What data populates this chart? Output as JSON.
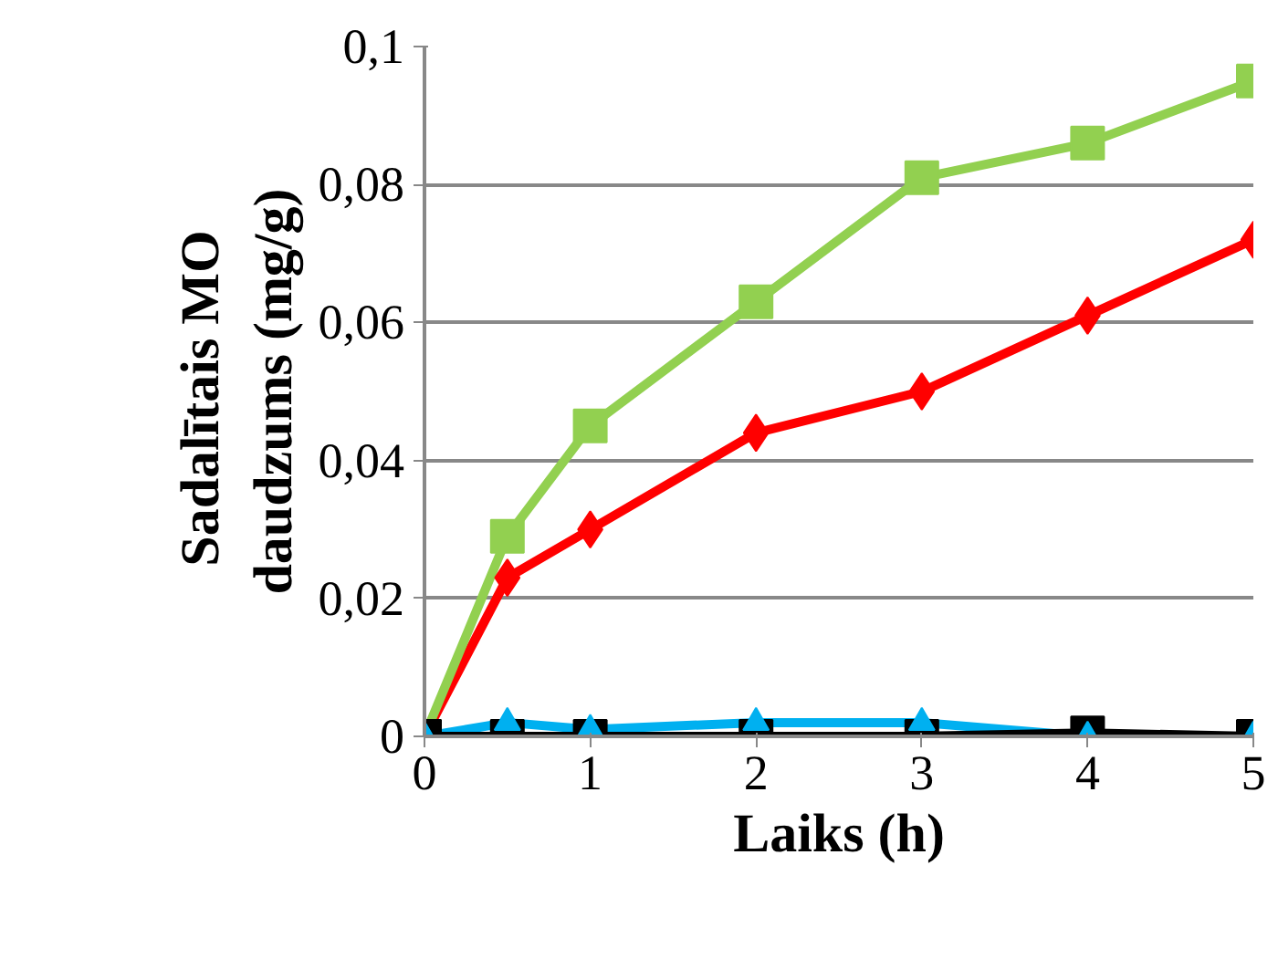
{
  "chart_data": {
    "type": "line",
    "xlabel": "Laiks (h)",
    "ylabel": "Sadalītais  MO\ndaudzums (mg/g)",
    "x": [
      0,
      0.5,
      1,
      2,
      3,
      4,
      5
    ],
    "xlim": [
      0,
      5
    ],
    "xticks": [
      0,
      1,
      2,
      3,
      4,
      5
    ],
    "ylim": [
      0,
      0.1
    ],
    "yticks": [
      {
        "value": 0,
        "label": "0"
      },
      {
        "value": 0.02,
        "label": "0,02"
      },
      {
        "value": 0.04,
        "label": "0,04"
      },
      {
        "value": 0.06,
        "label": "0,06"
      },
      {
        "value": 0.08,
        "label": "0,08"
      },
      {
        "value": 0.1,
        "label": "0,1"
      }
    ],
    "grid": "y",
    "series": [
      {
        "color": "#00b0f0",
        "marker": "triangle",
        "values": [
          0,
          0.002,
          0.001,
          0.002,
          0.002,
          0,
          0
        ]
      },
      {
        "color": "#ff0000",
        "marker": "diamond",
        "values": [
          0,
          0.023,
          0.03,
          0.044,
          0.05,
          0.061,
          0.072
        ]
      },
      {
        "color": "#92d050",
        "marker": "square",
        "values": [
          0,
          0.029,
          0.045,
          0.063,
          0.081,
          0.086,
          0.095
        ]
      },
      {
        "color": "#000000",
        "marker": "square",
        "values": [
          0,
          0,
          0,
          0,
          0,
          0.0005,
          0
        ]
      }
    ]
  }
}
